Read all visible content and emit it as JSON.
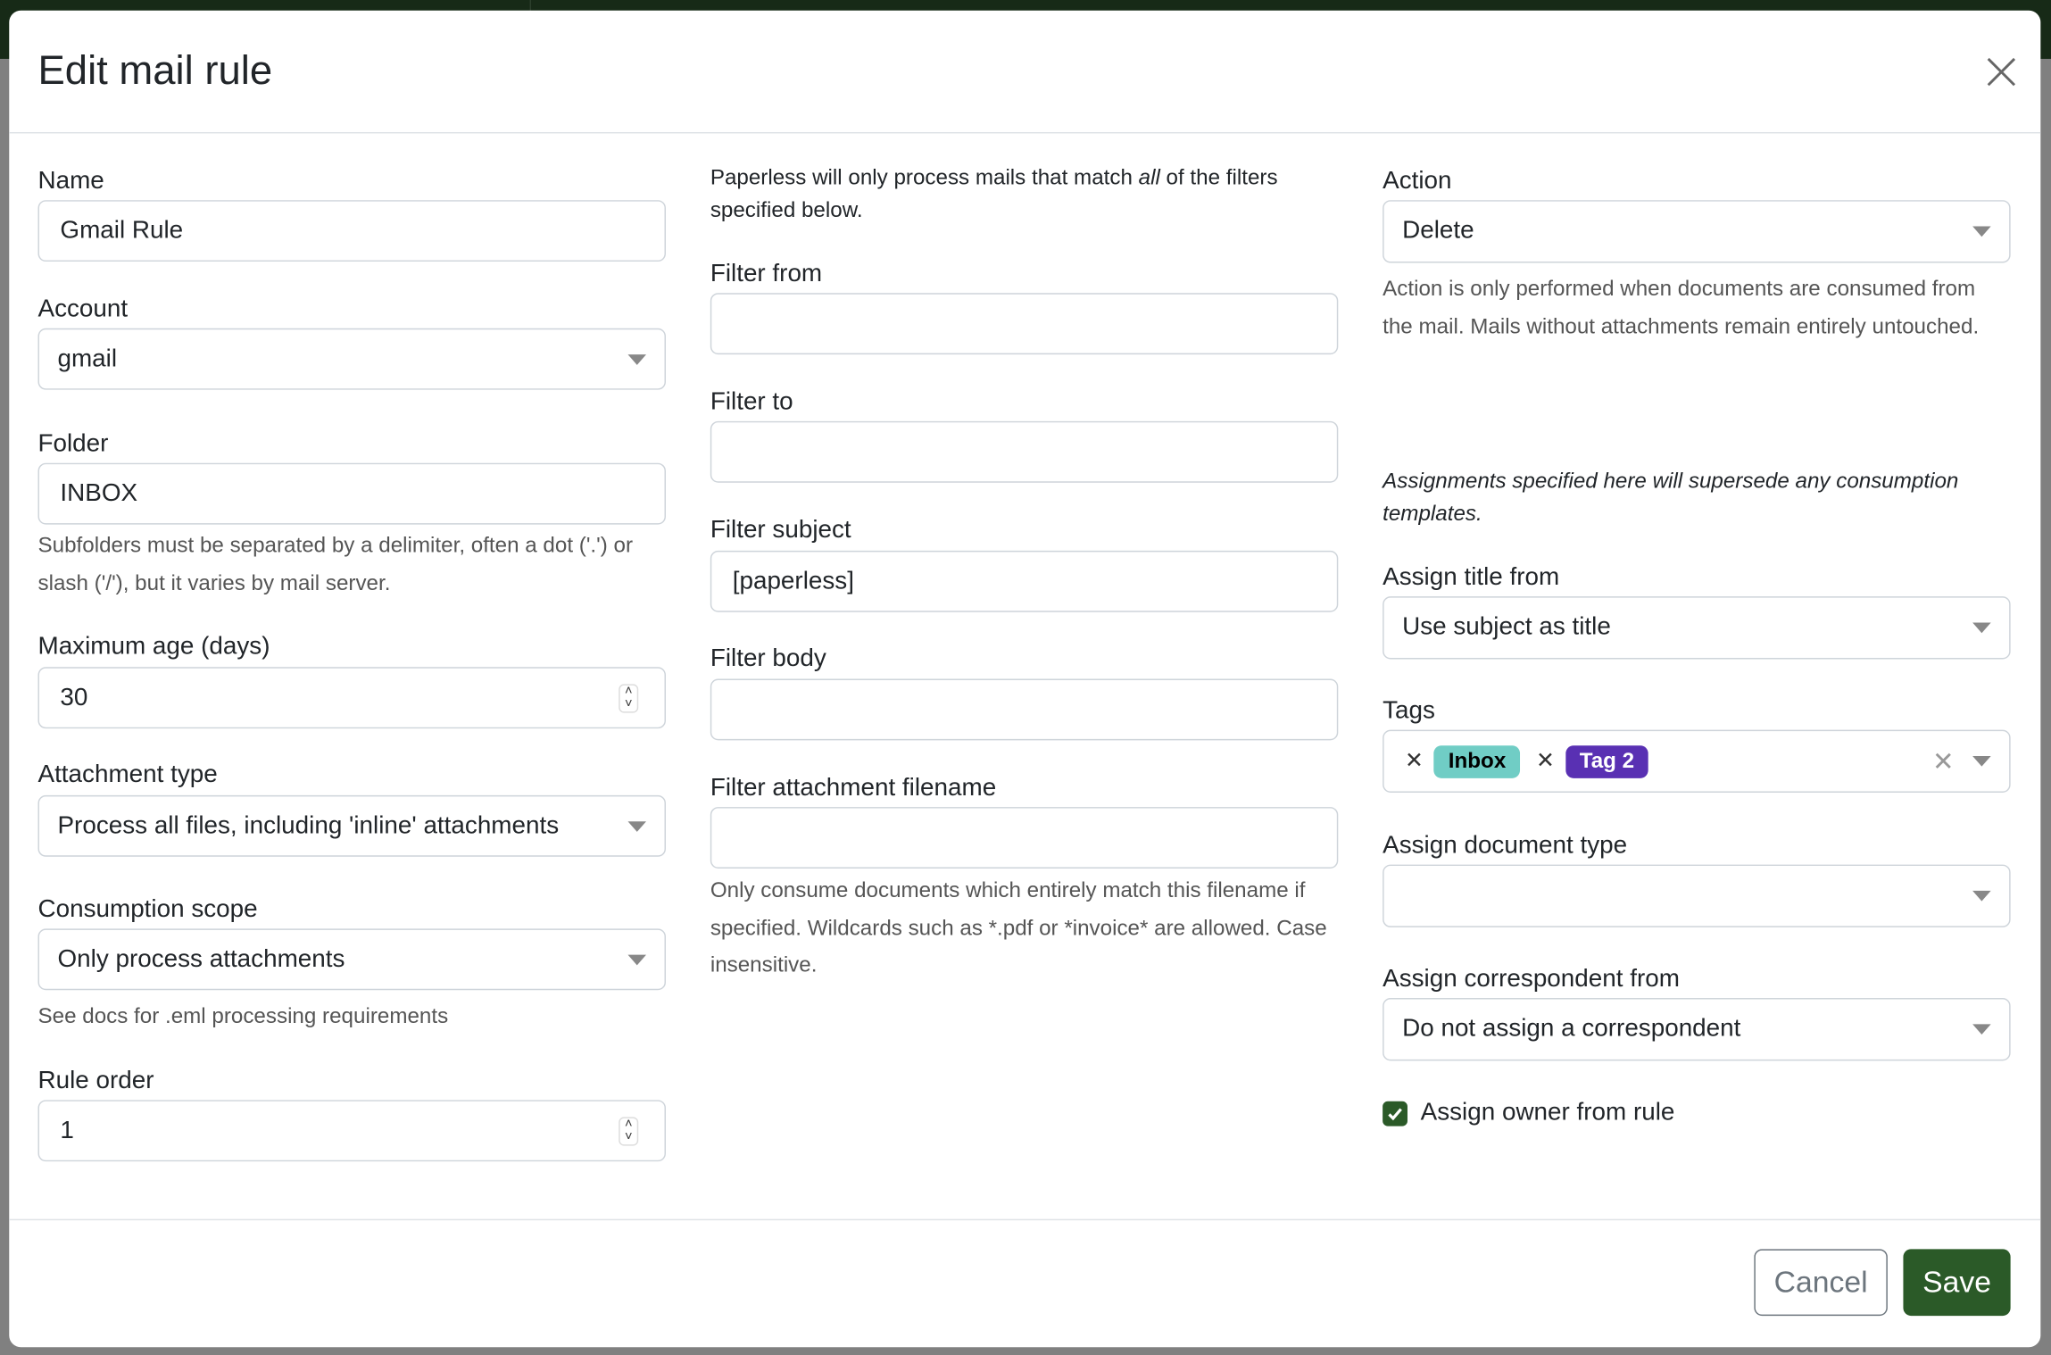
{
  "colors": {
    "primary": "#2b5a28",
    "tag_inbox": "#70cdc5",
    "tag_2": "#5930b3",
    "overlay": "#808080"
  },
  "dialog": {
    "title": "Edit mail rule",
    "close_icon": "close-icon"
  },
  "left": {
    "name": {
      "label": "Name",
      "value": "Gmail Rule"
    },
    "account": {
      "label": "Account",
      "value": "gmail"
    },
    "folder": {
      "label": "Folder",
      "value": "INBOX",
      "help": "Subfolders must be separated by a delimiter, often a dot ('.') or slash ('/'), but it varies by mail server."
    },
    "max_age": {
      "label": "Maximum age (days)",
      "value": "30"
    },
    "attachment_type": {
      "label": "Attachment type",
      "value": "Process all files, including 'inline' attachments"
    },
    "scope": {
      "label": "Consumption scope",
      "value": "Only process attachments",
      "help": "See docs for .eml processing requirements"
    },
    "order": {
      "label": "Rule order",
      "value": "1"
    }
  },
  "middle": {
    "intro_a": "Paperless will only process mails that match ",
    "intro_em": "all",
    "intro_b": " of the filters specified below.",
    "filter_from": {
      "label": "Filter from",
      "value": ""
    },
    "filter_to": {
      "label": "Filter to",
      "value": ""
    },
    "filter_subject": {
      "label": "Filter subject",
      "value": "[paperless]"
    },
    "filter_body": {
      "label": "Filter body",
      "value": ""
    },
    "filter_attachment": {
      "label": "Filter attachment filename",
      "value": "",
      "help": "Only consume documents which entirely match this filename if specified. Wildcards such as *.pdf or *invoice* are allowed. Case insensitive."
    }
  },
  "right": {
    "action": {
      "label": "Action",
      "value": "Delete",
      "help": "Action is only performed when documents are consumed from the mail. Mails without attachments remain entirely untouched."
    },
    "assign_note": "Assignments specified here will supersede any consumption templates.",
    "title_from": {
      "label": "Assign title from",
      "value": "Use subject as title"
    },
    "tags": {
      "label": "Tags",
      "items": [
        "Inbox",
        "Tag 2"
      ]
    },
    "doc_type": {
      "label": "Assign document type",
      "value": ""
    },
    "correspondent": {
      "label": "Assign correspondent from",
      "value": "Do not assign a correspondent"
    },
    "owner": {
      "label": "Assign owner from rule",
      "checked": true
    }
  },
  "footer": {
    "cancel": "Cancel",
    "save": "Save"
  }
}
